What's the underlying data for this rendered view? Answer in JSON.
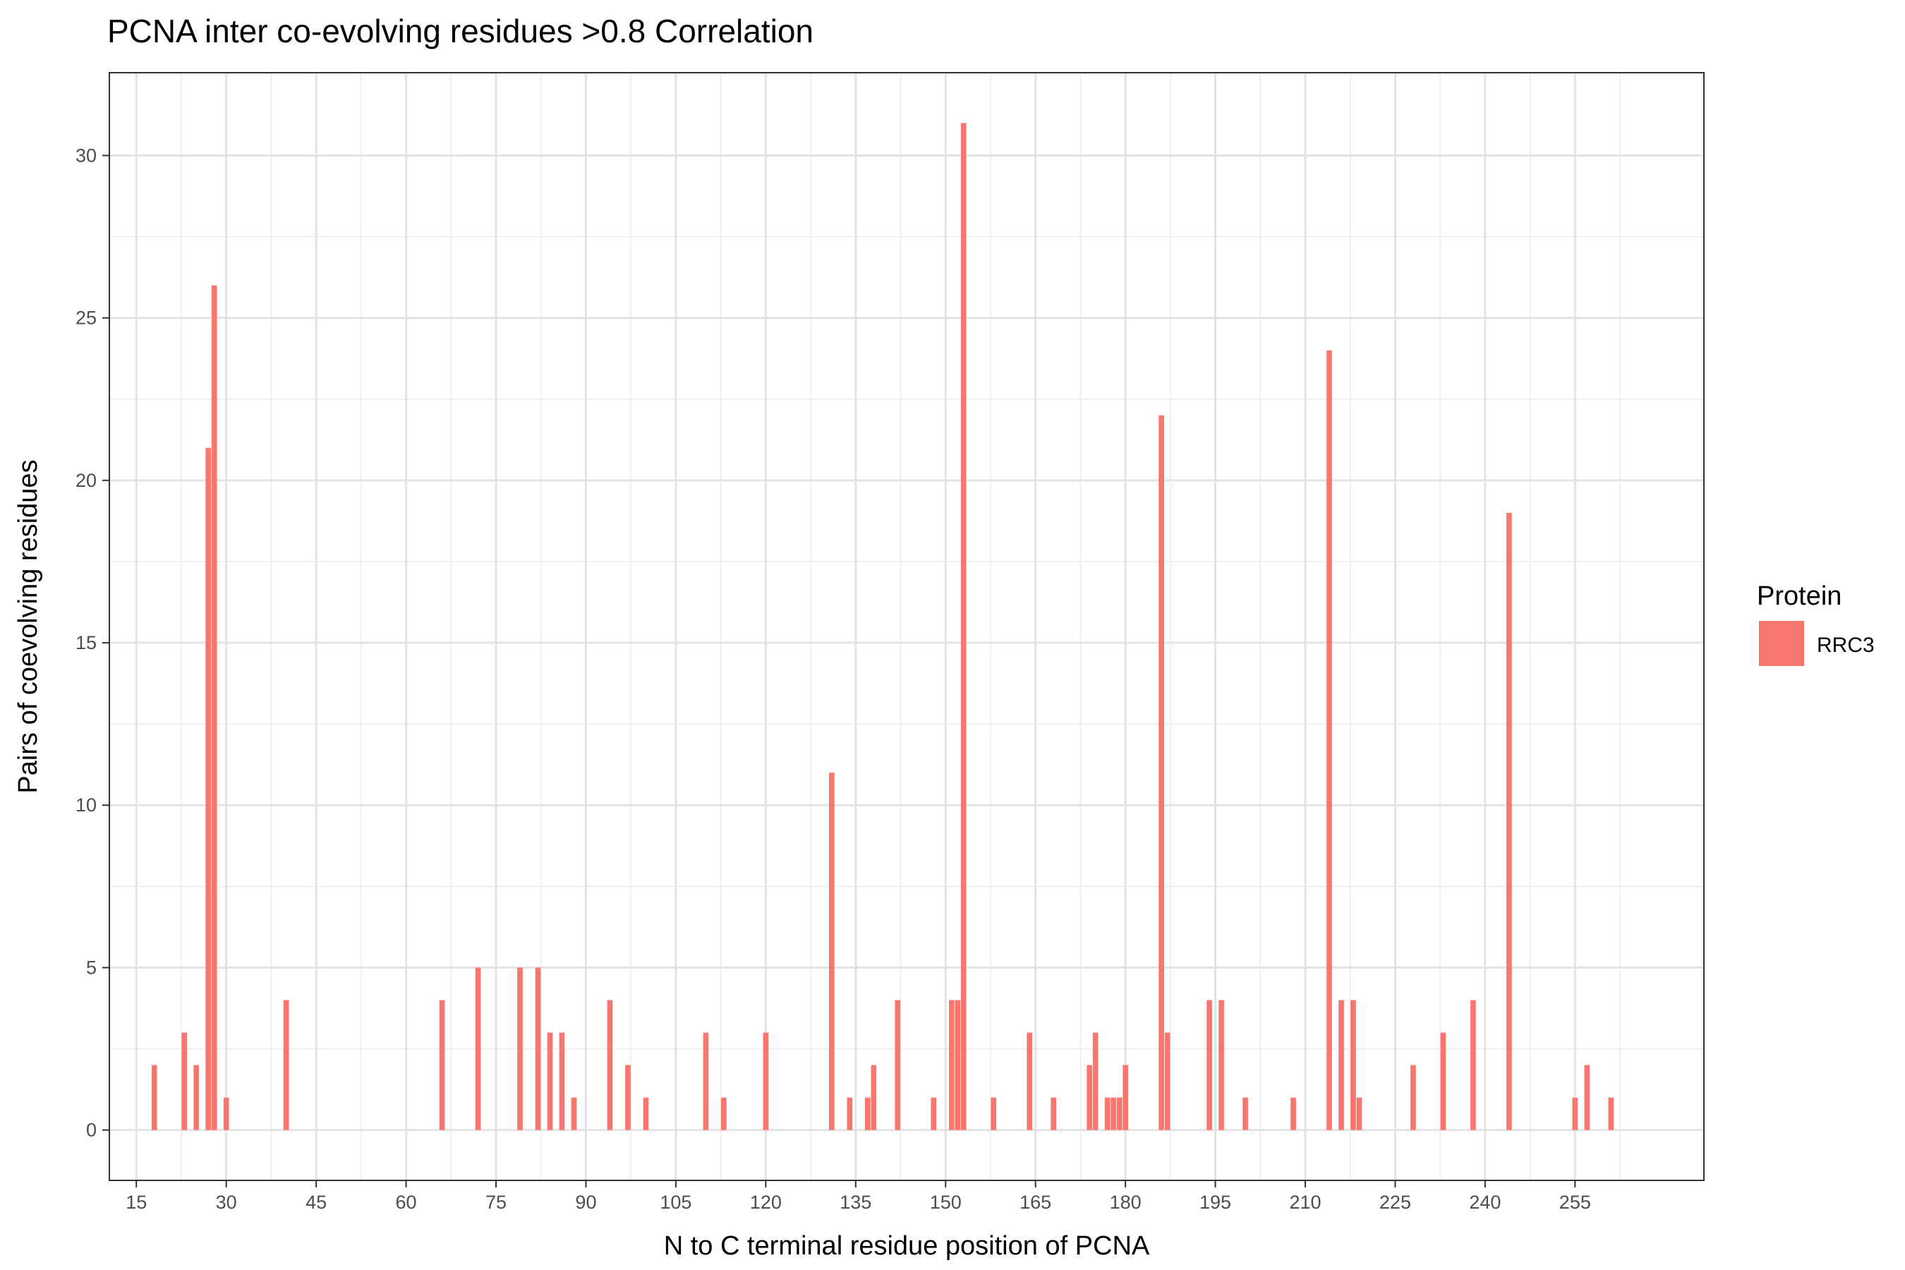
{
  "chart_data": {
    "type": "bar",
    "title": "PCNA inter co-evolving residues >0.8 Correlation",
    "xlabel": "N to C terminal residue position of PCNA",
    "ylabel": "Pairs of coevolving residues",
    "xlim": [
      10.5,
      276.5
    ],
    "ylim": [
      -1.55,
      32.55
    ],
    "x_ticks": [
      15,
      30,
      45,
      60,
      75,
      90,
      105,
      120,
      135,
      150,
      165,
      180,
      195,
      210,
      225,
      240,
      255
    ],
    "x_tick_labels": [
      "15",
      "30",
      "45",
      "60",
      "75",
      "90",
      "105",
      "120",
      "135",
      "150",
      "165",
      "180",
      "195",
      "210",
      "225",
      "240",
      "255"
    ],
    "y_ticks": [
      0,
      5,
      10,
      15,
      20,
      25,
      30
    ],
    "y_tick_labels": [
      "0",
      "5",
      "10",
      "15",
      "20",
      "25",
      "30"
    ],
    "grid": true,
    "legend": {
      "title": "Protein",
      "position": "right"
    },
    "series": [
      {
        "name": "RRC3",
        "color": "#F8766D",
        "x": [
          18,
          23,
          25,
          27,
          28,
          30,
          40,
          66,
          72,
          79,
          82,
          84,
          86,
          88,
          94,
          97,
          100,
          110,
          113,
          120,
          131,
          134,
          137,
          138,
          142,
          148,
          151,
          152,
          153,
          158,
          164,
          168,
          174,
          175,
          177,
          178,
          179,
          180,
          186,
          187,
          194,
          196,
          200,
          208,
          214,
          216,
          218,
          219,
          228,
          233,
          238,
          244,
          255,
          257,
          261
        ],
        "values": [
          2,
          3,
          2,
          21,
          26,
          1,
          4,
          4,
          5,
          5,
          5,
          3,
          3,
          1,
          4,
          2,
          1,
          3,
          1,
          3,
          11,
          1,
          1,
          2,
          4,
          1,
          4,
          4,
          31,
          1,
          3,
          1,
          2,
          3,
          1,
          1,
          1,
          2,
          22,
          3,
          4,
          4,
          1,
          1,
          24,
          4,
          4,
          1,
          2,
          3,
          4,
          19,
          1,
          2,
          1
        ]
      }
    ]
  }
}
